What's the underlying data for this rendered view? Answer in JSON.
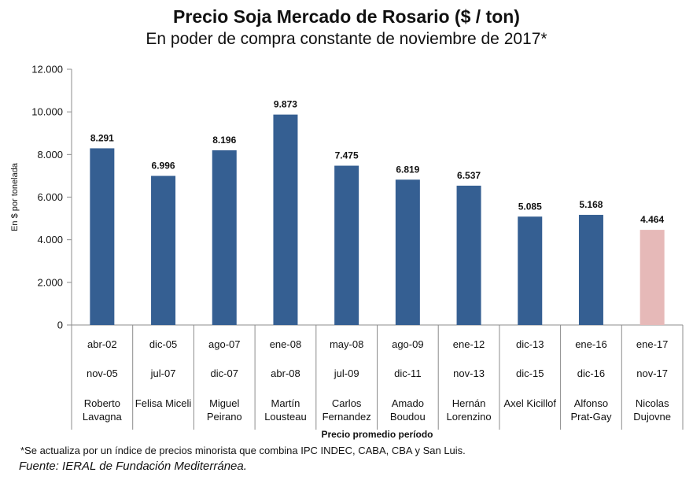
{
  "chart_data": {
    "type": "bar",
    "title": "Precio Soja Mercado de Rosario ($ / ton)",
    "subtitle": "En poder de compra constante de noviembre de 2017*",
    "ylabel": "En $ por tonelada",
    "xlabel": "Precio promedio período",
    "ylim": [
      0,
      12000
    ],
    "yticks": [
      0,
      2000,
      4000,
      6000,
      8000,
      10000,
      12000
    ],
    "ytick_labels": [
      "0",
      "2.000",
      "4.000",
      "6.000",
      "8.000",
      "10.000",
      "12.000"
    ],
    "grid": false,
    "categories": [
      {
        "start": "abr-02",
        "end": "nov-05",
        "name": [
          "Roberto",
          "Lavagna"
        ]
      },
      {
        "start": "dic-05",
        "end": "jul-07",
        "name": [
          "Felisa Miceli"
        ]
      },
      {
        "start": "ago-07",
        "end": "dic-07",
        "name": [
          "Miguel",
          "Peirano"
        ]
      },
      {
        "start": "ene-08",
        "end": "abr-08",
        "name": [
          "Martín",
          "Lousteau"
        ]
      },
      {
        "start": "may-08",
        "end": "jul-09",
        "name": [
          "Carlos",
          "Fernandez"
        ]
      },
      {
        "start": "ago-09",
        "end": "dic-11",
        "name": [
          "Amado",
          "Boudou"
        ]
      },
      {
        "start": "ene-12",
        "end": "nov-13",
        "name": [
          "Hernán",
          "Lorenzino"
        ]
      },
      {
        "start": "dic-13",
        "end": "dic-15",
        "name": [
          "Axel Kicillof"
        ]
      },
      {
        "start": "ene-16",
        "end": "dic-16",
        "name": [
          "Alfonso",
          "Prat-Gay"
        ]
      },
      {
        "start": "ene-17",
        "end": "nov-17",
        "name": [
          "Nicolas",
          "Dujovne"
        ]
      }
    ],
    "values": [
      8291,
      6996,
      8196,
      9873,
      7475,
      6819,
      6537,
      5085,
      5168,
      4464
    ],
    "value_labels": [
      "8.291",
      "6.996",
      "8.196",
      "9.873",
      "7.475",
      "6.819",
      "6.537",
      "5.085",
      "5.168",
      "4.464"
    ],
    "colors": {
      "bar": "#355f92",
      "highlight": "#e6b9b8",
      "axis": "#8c8c8c"
    },
    "highlight_index": 9
  },
  "footnote": "*Se actualiza por un índice de precios minorista que combina IPC INDEC, CABA, CBA y San Luis.",
  "source": "Fuente: IERAL de Fundación Mediterránea."
}
